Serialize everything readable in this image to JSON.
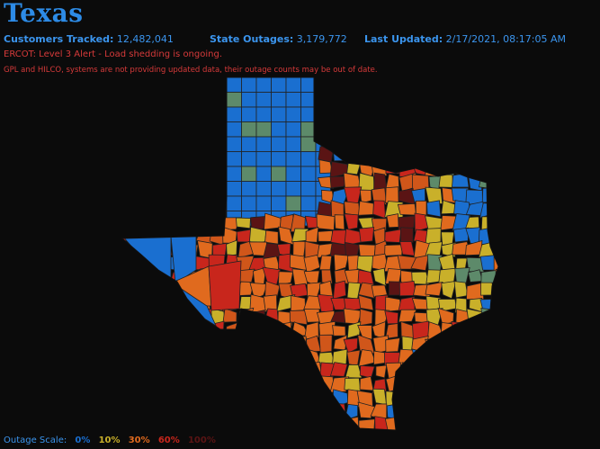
{
  "header": {
    "title": "Texas",
    "customers_label": "Customers Tracked:",
    "customers_value": "12,482,041",
    "outages_label": "State Outages:",
    "outages_value": "3,179,772",
    "updated_label": "Last Updated:",
    "updated_value": "2/17/2021, 08:17:05 AM",
    "alert": "ERCOT: Level 3 Alert - Load shedding is ongoing.",
    "notice": "GPL and HILCO, systems are not providing updated data, their outage counts may be out of date."
  },
  "scale": {
    "label": "Outage Scale:",
    "levels": [
      {
        "text": "0%",
        "color": "#1a6fd0"
      },
      {
        "text": "10%",
        "color": "#c9b02a"
      },
      {
        "text": "30%",
        "color": "#e06a1e"
      },
      {
        "text": "60%",
        "color": "#c8261c"
      },
      {
        "text": "100%",
        "color": "#5a1414"
      }
    ]
  },
  "colors": {
    "background": "#0b0b0b",
    "accent": "#2d8be6",
    "alert": "#d63a3a",
    "county_border": "#222222"
  }
}
